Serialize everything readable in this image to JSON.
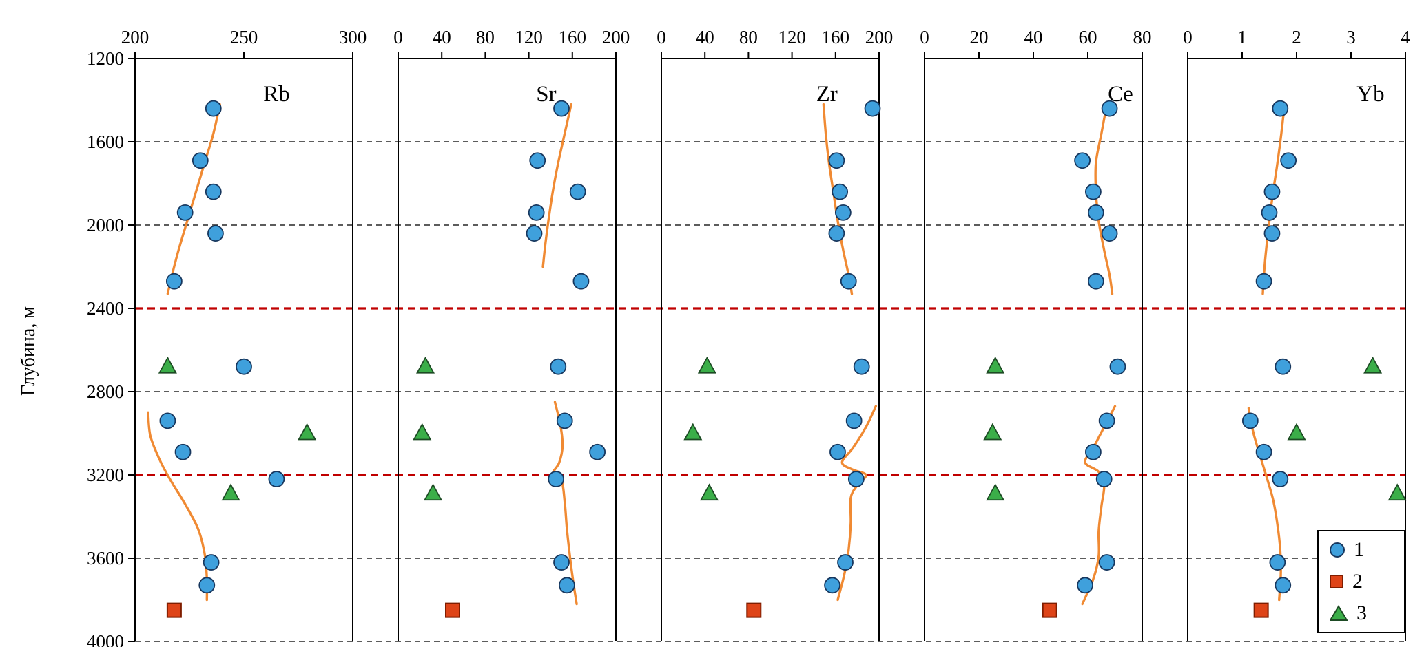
{
  "figure": {
    "ylabel": "Глубина, м",
    "depth_axis": {
      "min": 1200,
      "max": 4000,
      "ticks": [
        1200,
        1600,
        2000,
        2400,
        2800,
        3200,
        3600,
        4000
      ],
      "inverted": true
    },
    "gridlines": {
      "black_dashed": [
        1600,
        2000,
        2800,
        3600,
        4000
      ],
      "red_dashed": [
        2400,
        3200
      ]
    },
    "legend": {
      "items": [
        {
          "label": "1",
          "marker": "circle"
        },
        {
          "label": "2",
          "marker": "square"
        },
        {
          "label": "3",
          "marker": "triangle"
        }
      ]
    },
    "colors": {
      "circle_fill": "#3FA0DC",
      "circle_stroke": "#17375E",
      "square_fill": "#DE4418",
      "square_stroke": "#7F1D00",
      "triangle_fill": "#3BAE49",
      "triangle_stroke": "#1D4B24",
      "trend_line": "#F08A33",
      "red_gridline": "#C00000",
      "black_gridline": "#262626",
      "axis": "#000000"
    }
  },
  "chart_data": [
    {
      "type": "scatter",
      "title": "Rb",
      "xlim": [
        200,
        300
      ],
      "xticks": [
        200,
        250,
        300
      ],
      "ylabel": "Глубина, м",
      "ylim": [
        1200,
        4000
      ],
      "series": [
        {
          "name": "1",
          "marker": "circle",
          "points": [
            [
              236,
              1440
            ],
            [
              230,
              1690
            ],
            [
              236,
              1840
            ],
            [
              223,
              1940
            ],
            [
              237,
              2040
            ],
            [
              218,
              2270
            ],
            [
              250,
              2680
            ],
            [
              215,
              2940
            ],
            [
              222,
              3090
            ],
            [
              265,
              3220
            ],
            [
              235,
              3620
            ],
            [
              233,
              3730
            ]
          ]
        },
        {
          "name": "2",
          "marker": "square",
          "points": [
            [
              218,
              3850
            ]
          ]
        },
        {
          "name": "3",
          "marker": "triangle",
          "points": [
            [
              215,
              2680
            ],
            [
              279,
              3000
            ],
            [
              244,
              3290
            ]
          ]
        },
        {
          "name": "trend-upper",
          "type": "line",
          "points": [
            [
              239,
              1420
            ],
            [
              236,
              1560
            ],
            [
              232,
              1700
            ],
            [
              228,
              1840
            ],
            [
              224,
              1980
            ],
            [
              220,
              2120
            ],
            [
              217,
              2240
            ],
            [
              215,
              2330
            ]
          ]
        },
        {
          "name": "trend-lower",
          "type": "line",
          "points": [
            [
              206,
              2900
            ],
            [
              207,
              3010
            ],
            [
              211,
              3120
            ],
            [
              216,
              3220
            ],
            [
              223,
              3340
            ],
            [
              229,
              3460
            ],
            [
              232,
              3580
            ],
            [
              233,
              3700
            ],
            [
              233,
              3800
            ]
          ]
        }
      ]
    },
    {
      "type": "scatter",
      "title": "Sr",
      "xlim": [
        0,
        200
      ],
      "xticks": [
        0,
        40,
        80,
        120,
        160,
        200
      ],
      "ylabel": "Глубина, м",
      "ylim": [
        1200,
        4000
      ],
      "series": [
        {
          "name": "1",
          "marker": "circle",
          "points": [
            [
              150,
              1440
            ],
            [
              128,
              1690
            ],
            [
              165,
              1840
            ],
            [
              127,
              1940
            ],
            [
              125,
              2040
            ],
            [
              168,
              2270
            ],
            [
              147,
              2680
            ],
            [
              153,
              2940
            ],
            [
              183,
              3090
            ],
            [
              145,
              3220
            ],
            [
              150,
              3620
            ],
            [
              155,
              3730
            ]
          ]
        },
        {
          "name": "2",
          "marker": "square",
          "points": [
            [
              50,
              3850
            ]
          ]
        },
        {
          "name": "3",
          "marker": "triangle",
          "points": [
            [
              25,
              2680
            ],
            [
              22,
              3000
            ],
            [
              32,
              3290
            ]
          ]
        },
        {
          "name": "trend-upper",
          "type": "line",
          "points": [
            [
              159,
              1420
            ],
            [
              153,
              1560
            ],
            [
              147,
              1700
            ],
            [
              142,
              1840
            ],
            [
              138,
              1980
            ],
            [
              135,
              2100
            ],
            [
              133,
              2200
            ]
          ]
        },
        {
          "name": "trend-lower",
          "type": "line",
          "points": [
            [
              144,
              2850
            ],
            [
              149,
              2960
            ],
            [
              151,
              3060
            ],
            [
              148,
              3140
            ],
            [
              142,
              3195
            ],
            [
              150,
              3225
            ],
            [
              153,
              3330
            ],
            [
              155,
              3460
            ],
            [
              158,
              3600
            ],
            [
              161,
              3720
            ],
            [
              164,
              3820
            ]
          ]
        }
      ]
    },
    {
      "type": "scatter",
      "title": "Zr",
      "xlim": [
        0,
        200
      ],
      "xticks": [
        0,
        40,
        80,
        120,
        160,
        200
      ],
      "ylabel": "Глубина, м",
      "ylim": [
        1200,
        4000
      ],
      "series": [
        {
          "name": "1",
          "marker": "circle",
          "points": [
            [
              194,
              1440
            ],
            [
              161,
              1690
            ],
            [
              164,
              1840
            ],
            [
              167,
              1940
            ],
            [
              161,
              2040
            ],
            [
              172,
              2270
            ],
            [
              184,
              2680
            ],
            [
              177,
              2940
            ],
            [
              162,
              3090
            ],
            [
              179,
              3220
            ],
            [
              169,
              3620
            ],
            [
              157,
              3730
            ]
          ]
        },
        {
          "name": "2",
          "marker": "square",
          "points": [
            [
              85,
              3850
            ]
          ]
        },
        {
          "name": "3",
          "marker": "triangle",
          "points": [
            [
              42,
              2680
            ],
            [
              29,
              3000
            ],
            [
              44,
              3290
            ]
          ]
        },
        {
          "name": "trend-upper",
          "type": "line",
          "points": [
            [
              149,
              1420
            ],
            [
              151,
              1560
            ],
            [
              154,
              1700
            ],
            [
              158,
              1840
            ],
            [
              162,
              1980
            ],
            [
              167,
              2120
            ],
            [
              172,
              2240
            ],
            [
              175,
              2330
            ]
          ]
        },
        {
          "name": "trend-lower",
          "type": "line",
          "points": [
            [
              197,
              2870
            ],
            [
              188,
              2970
            ],
            [
              176,
              3070
            ],
            [
              166,
              3140
            ],
            [
              176,
              3175
            ],
            [
              188,
              3200
            ],
            [
              180,
              3250
            ],
            [
              174,
              3310
            ],
            [
              174,
              3430
            ],
            [
              172,
              3560
            ],
            [
              168,
              3680
            ],
            [
              162,
              3800
            ]
          ]
        }
      ]
    },
    {
      "type": "scatter",
      "title": "Ce",
      "xlim": [
        0,
        80
      ],
      "xticks": [
        0,
        20,
        40,
        60,
        80
      ],
      "ylabel": "Глубина, м",
      "ylim": [
        1200,
        4000
      ],
      "series": [
        {
          "name": "1",
          "marker": "circle",
          "points": [
            [
              68,
              1440
            ],
            [
              58,
              1690
            ],
            [
              62,
              1840
            ],
            [
              63,
              1940
            ],
            [
              68,
              2040
            ],
            [
              63,
              2270
            ],
            [
              71,
              2680
            ],
            [
              67,
              2940
            ],
            [
              62,
              3090
            ],
            [
              66,
              3220
            ],
            [
              67,
              3620
            ],
            [
              59,
              3730
            ]
          ]
        },
        {
          "name": "2",
          "marker": "square",
          "points": [
            [
              46,
              3850
            ]
          ]
        },
        {
          "name": "3",
          "marker": "triangle",
          "points": [
            [
              26,
              2680
            ],
            [
              25,
              3000
            ],
            [
              26,
              3290
            ]
          ]
        },
        {
          "name": "trend-upper",
          "type": "line",
          "points": [
            [
              67,
              1420
            ],
            [
              65,
              1560
            ],
            [
              63,
              1700
            ],
            [
              63,
              1840
            ],
            [
              64,
              1980
            ],
            [
              66,
              2120
            ],
            [
              68,
              2240
            ],
            [
              69,
              2330
            ]
          ]
        },
        {
          "name": "trend-lower",
          "type": "line",
          "points": [
            [
              70,
              2870
            ],
            [
              66,
              2970
            ],
            [
              62,
              3070
            ],
            [
              59,
              3140
            ],
            [
              64,
              3185
            ],
            [
              66,
              3250
            ],
            [
              65,
              3350
            ],
            [
              64,
              3470
            ],
            [
              64,
              3590
            ],
            [
              62,
              3700
            ],
            [
              58,
              3820
            ]
          ]
        }
      ]
    },
    {
      "type": "scatter",
      "title": "Yb",
      "xlim": [
        0,
        4
      ],
      "xticks": [
        0,
        1,
        2,
        3,
        4
      ],
      "ylabel": "Глубина, м",
      "ylim": [
        1200,
        4000
      ],
      "series": [
        {
          "name": "1",
          "marker": "circle",
          "points": [
            [
              1.7,
              1440
            ],
            [
              1.85,
              1690
            ],
            [
              1.55,
              1840
            ],
            [
              1.5,
              1940
            ],
            [
              1.55,
              2040
            ],
            [
              1.4,
              2270
            ],
            [
              1.75,
              2680
            ],
            [
              1.15,
              2940
            ],
            [
              1.4,
              3090
            ],
            [
              1.7,
              3220
            ],
            [
              1.65,
              3620
            ],
            [
              1.75,
              3730
            ]
          ]
        },
        {
          "name": "2",
          "marker": "square",
          "points": [
            [
              1.35,
              3850
            ]
          ]
        },
        {
          "name": "3",
          "marker": "triangle",
          "points": [
            [
              3.4,
              2680
            ],
            [
              2.0,
              3000
            ],
            [
              3.85,
              3290
            ]
          ]
        },
        {
          "name": "trend-upper",
          "type": "line",
          "points": [
            [
              1.78,
              1420
            ],
            [
              1.72,
              1560
            ],
            [
              1.65,
              1700
            ],
            [
              1.57,
              1840
            ],
            [
              1.5,
              1980
            ],
            [
              1.44,
              2120
            ],
            [
              1.4,
              2240
            ],
            [
              1.38,
              2330
            ]
          ]
        },
        {
          "name": "trend-lower",
          "type": "line",
          "points": [
            [
              1.12,
              2880
            ],
            [
              1.2,
              2990
            ],
            [
              1.32,
              3100
            ],
            [
              1.45,
              3210
            ],
            [
              1.57,
              3320
            ],
            [
              1.65,
              3440
            ],
            [
              1.7,
              3560
            ],
            [
              1.71,
              3680
            ],
            [
              1.68,
              3800
            ]
          ]
        }
      ]
    }
  ]
}
